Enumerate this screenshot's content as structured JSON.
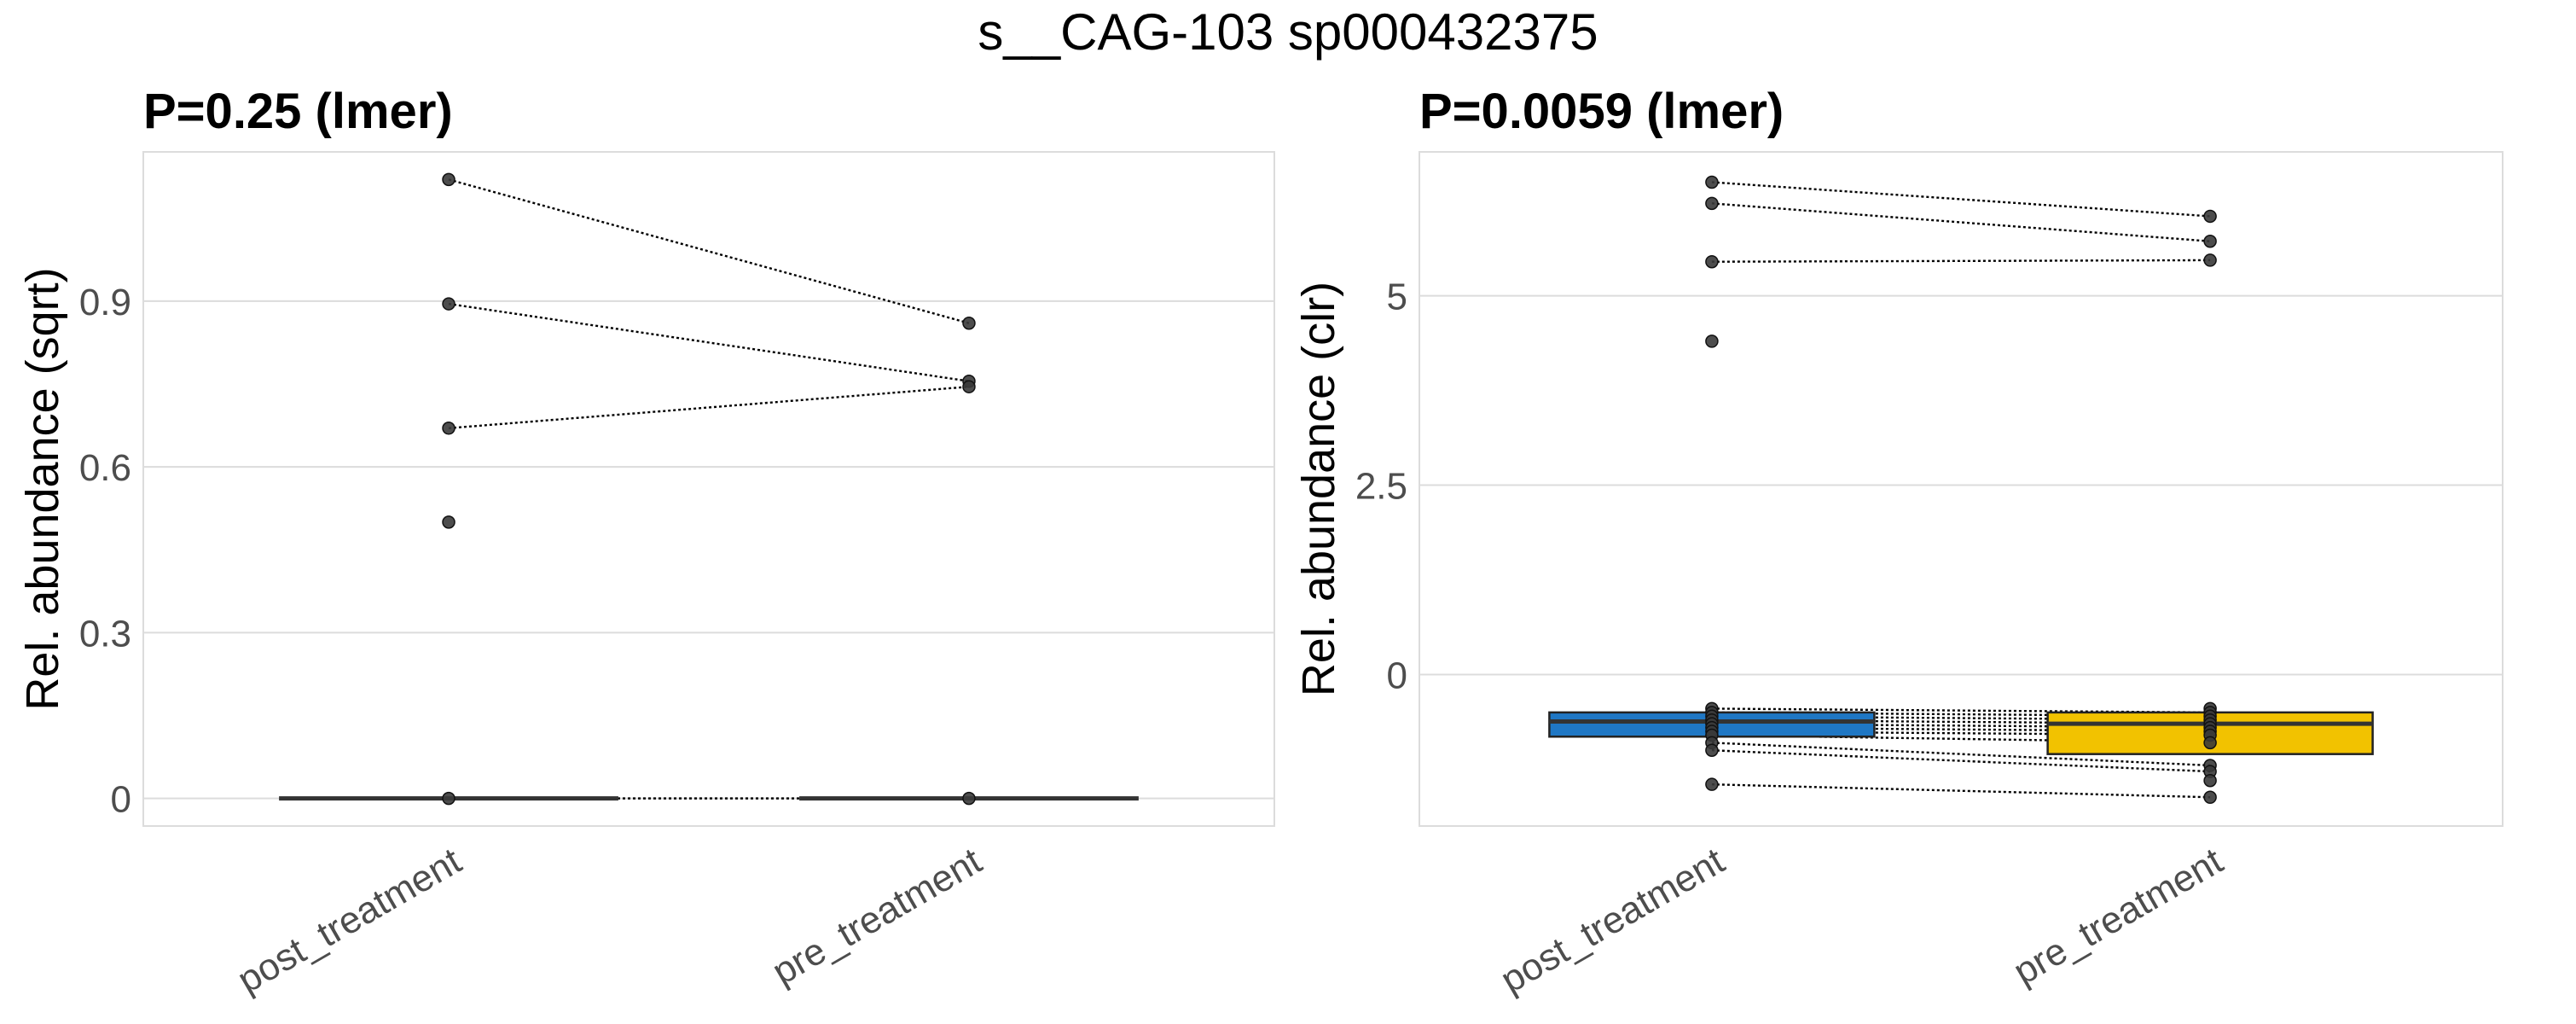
{
  "figure": {
    "title": "s__CAG-103 sp000432375"
  },
  "chart_data": [
    {
      "type": "box",
      "subtitle": "P=0.25 (lmer)",
      "ylabel": "Rel. abundance (sqrt)",
      "xlabel": "",
      "categories": [
        "post_treatment",
        "pre_treatment"
      ],
      "ylim": [
        -0.05,
        1.17
      ],
      "yticks": [
        0,
        0.3,
        0.6,
        0.9
      ],
      "ytick_labels": [
        "0",
        "0.3",
        "0.6",
        "0.9"
      ],
      "grid": true,
      "boxes": [
        {
          "category": "post_treatment",
          "q1": 0,
          "median": 0,
          "q3": 0,
          "whisker_low": 0,
          "whisker_high": 0,
          "fill": "none"
        },
        {
          "category": "pre_treatment",
          "q1": 0,
          "median": 0,
          "q3": 0,
          "whisker_low": 0,
          "whisker_high": 0,
          "fill": "none"
        }
      ],
      "points": {
        "post_treatment": [
          1.12,
          0.895,
          0.67,
          0.5,
          0
        ],
        "pre_treatment": [
          0.86,
          0.755,
          0.745,
          0
        ]
      },
      "pairs": [
        [
          1.12,
          0.86
        ],
        [
          0.895,
          0.755
        ],
        [
          0.67,
          0.745
        ],
        [
          0,
          0
        ]
      ]
    },
    {
      "type": "box",
      "subtitle": "P=0.0059 (lmer)",
      "ylabel": "Rel. abundance (clr)",
      "xlabel": "",
      "categories": [
        "post_treatment",
        "pre_treatment"
      ],
      "ylim": [
        -2.0,
        6.9
      ],
      "yticks": [
        0,
        2.5,
        5
      ],
      "ytick_labels": [
        "0",
        "2.5",
        "5"
      ],
      "grid": true,
      "boxes": [
        {
          "category": "post_treatment",
          "q1": -0.82,
          "median": -0.62,
          "q3": -0.5,
          "whisker_low": -0.82,
          "whisker_high": -0.5,
          "fill": "#1f77c4"
        },
        {
          "category": "pre_treatment",
          "q1": -1.05,
          "median": -0.65,
          "q3": -0.5,
          "whisker_low": -1.05,
          "whisker_high": -0.5,
          "fill": "#f2c200"
        }
      ],
      "points": {
        "post_treatment": [
          6.5,
          6.22,
          5.45,
          4.4,
          -0.45,
          -0.5,
          -0.55,
          -0.6,
          -0.65,
          -0.7,
          -0.75,
          -0.8,
          -0.9,
          -1.0,
          -1.45
        ],
        "pre_treatment": [
          6.05,
          5.72,
          5.47,
          -0.45,
          -0.5,
          -0.55,
          -0.6,
          -0.65,
          -0.7,
          -0.75,
          -0.8,
          -0.9,
          -1.2,
          -1.28,
          -1.4,
          -1.62
        ]
      },
      "pairs": [
        [
          6.5,
          6.05
        ],
        [
          6.22,
          5.72
        ],
        [
          5.45,
          5.47
        ],
        [
          -0.45,
          -0.5
        ],
        [
          -0.5,
          -0.55
        ],
        [
          -0.55,
          -0.6
        ],
        [
          -0.6,
          -0.65
        ],
        [
          -0.65,
          -0.7
        ],
        [
          -0.7,
          -0.75
        ],
        [
          -0.75,
          -0.8
        ],
        [
          -0.8,
          -0.9
        ],
        [
          -0.9,
          -1.2
        ],
        [
          -1.0,
          -1.28
        ],
        [
          -1.45,
          -1.62
        ]
      ]
    }
  ]
}
